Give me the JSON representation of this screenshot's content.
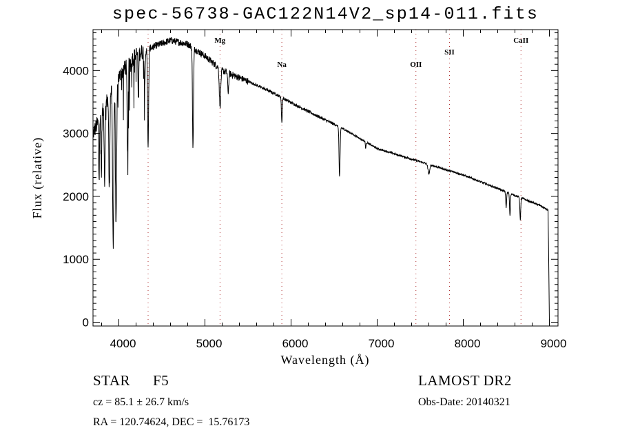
{
  "chart_data": {
    "type": "line",
    "title": "spec-56738-GAC122N14V2_sp14-011.fits",
    "xlabel": "Wavelength (Å)",
    "ylabel": "Flux (relative)",
    "xlim": [
      3700,
      9100
    ],
    "ylim": [
      -60,
      4650
    ],
    "x_ticks": [
      4000,
      5000,
      6000,
      7000,
      8000,
      9000
    ],
    "x_tick_labels": [
      "4000",
      "5000",
      "6000",
      "7000",
      "8000",
      "9000"
    ],
    "y_ticks": [
      0,
      1000,
      2000,
      3000,
      4000
    ],
    "y_tick_labels": [
      "0",
      "1000",
      "2000",
      "3000",
      "4000"
    ],
    "grid": false,
    "series": [
      {
        "name": "spectrum",
        "continuum": [
          [
            3700,
            3000
          ],
          [
            3800,
            3300
          ],
          [
            3900,
            3650
          ],
          [
            4000,
            3900
          ],
          [
            4100,
            4100
          ],
          [
            4200,
            4250
          ],
          [
            4400,
            4380
          ],
          [
            4600,
            4480
          ],
          [
            4800,
            4420
          ],
          [
            5000,
            4230
          ],
          [
            5200,
            4000
          ],
          [
            5500,
            3830
          ],
          [
            5800,
            3640
          ],
          [
            6000,
            3490
          ],
          [
            6300,
            3280
          ],
          [
            6600,
            3080
          ],
          [
            7000,
            2760
          ],
          [
            7500,
            2550
          ],
          [
            8000,
            2340
          ],
          [
            8500,
            2070
          ],
          [
            8900,
            1850
          ],
          [
            8985,
            1780
          ],
          [
            8995,
            600
          ],
          [
            9000,
            0
          ]
        ],
        "absorption_lines": [
          [
            3770,
            900,
            4
          ],
          [
            3797,
            1000,
            4
          ],
          [
            3835,
            1200,
            5
          ],
          [
            3889,
            1500,
            6
          ],
          [
            3934,
            2500,
            7
          ],
          [
            3968,
            2200,
            7
          ],
          [
            4102,
            1400,
            6
          ],
          [
            4227,
            800,
            4
          ],
          [
            4300,
            500,
            6
          ],
          [
            4340,
            1600,
            6
          ],
          [
            4861,
            1600,
            6
          ],
          [
            5175,
            600,
            8
          ],
          [
            5270,
            300,
            6
          ],
          [
            5893,
            400,
            5
          ],
          [
            6563,
            800,
            6
          ],
          [
            6867,
            100,
            4
          ],
          [
            7600,
            150,
            10
          ],
          [
            8498,
            250,
            5
          ],
          [
            8542,
            350,
            5
          ],
          [
            8662,
            350,
            5
          ]
        ]
      }
    ],
    "line_markers": [
      {
        "label": "",
        "wavelength": 4340
      },
      {
        "label": "Mg",
        "wavelength": 5175
      },
      {
        "label": "Na",
        "wavelength": 5893
      },
      {
        "label": "OII",
        "wavelength": 7450
      },
      {
        "label": "SII",
        "wavelength": 7840
      },
      {
        "label": "CaII",
        "wavelength": 8670
      }
    ]
  },
  "info": {
    "class": "STAR",
    "subclass": "F5",
    "survey": "LAMOST DR2",
    "cz": "cz = 85.1 ± 26.7 km/s",
    "obs_date": "Obs-Date: 20140321",
    "coords": "RA = 120.74624, DEC =  15.76173"
  },
  "colors": {
    "marker": "#b03030",
    "line": "#000000"
  }
}
